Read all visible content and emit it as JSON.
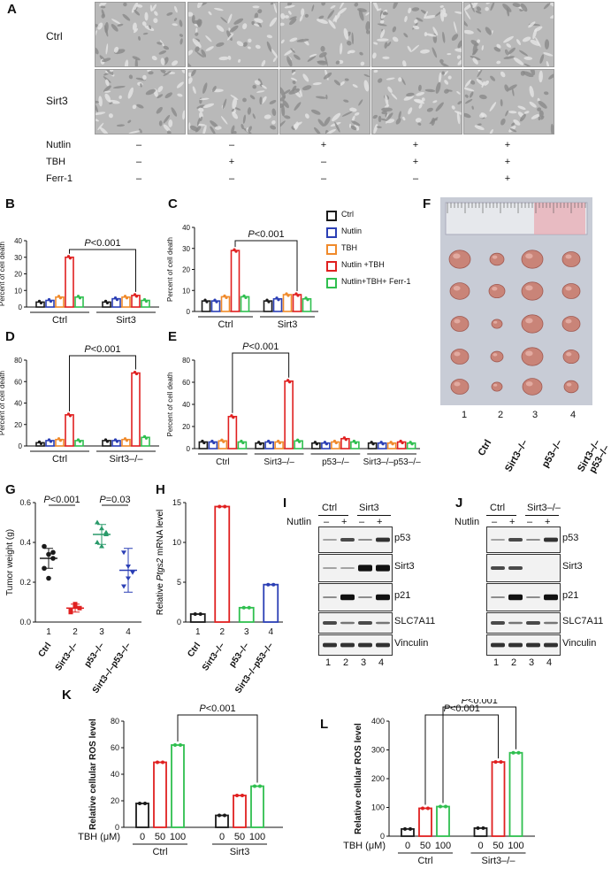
{
  "panel_letters": [
    "A",
    "B",
    "C",
    "D",
    "E",
    "F",
    "G",
    "H",
    "I",
    "J",
    "K",
    "L"
  ],
  "panelA": {
    "row_labels": [
      "Ctrl",
      "Sirt3"
    ],
    "conditions": [
      {
        "name": "Nutlin",
        "values": [
          "–",
          "–",
          "+",
          "+",
          "+"
        ]
      },
      {
        "name": "TBH",
        "values": [
          "–",
          "+",
          "–",
          "+",
          "+"
        ]
      },
      {
        "name": "Ferr-1",
        "values": [
          "–",
          "–",
          "–",
          "–",
          "+"
        ]
      }
    ]
  },
  "legend": {
    "items": [
      {
        "label": "Ctrl",
        "color": "#1a1a1a"
      },
      {
        "label": "Nutlin",
        "color": "#2b3fb5"
      },
      {
        "label": "TBH",
        "color": "#f08a2b"
      },
      {
        "label": "Nutlin +TBH",
        "color": "#e02020"
      },
      {
        "label": "Nutlin+TBH+ Ferr-1",
        "color": "#2fbf4f"
      }
    ]
  },
  "panelF": {
    "numbers": [
      "1",
      "2",
      "3",
      "4"
    ],
    "labels": [
      "Ctrl",
      "Sirt3–/–",
      "p53–/–",
      "Sirt3–/–p53–/–"
    ]
  },
  "panelI": {
    "header": [
      "Ctrl",
      "Sirt3"
    ],
    "nutlin_label": "Nutlin",
    "nutlin_signs": [
      "–",
      "+",
      "–",
      "+"
    ],
    "lanes": [
      "1",
      "2",
      "3",
      "4"
    ],
    "bands": [
      "p53",
      "Sirt3",
      "p21",
      "SLC7A11",
      "Vinculin"
    ]
  },
  "panelJ": {
    "header": [
      "Ctrl",
      "Sirt3–/–"
    ],
    "nutlin_label": "Nutlin",
    "nutlin_signs": [
      "–",
      "+",
      "–",
      "+"
    ],
    "lanes": [
      "1",
      "2",
      "3",
      "4"
    ],
    "bands": [
      "p53",
      "Sirt3",
      "p21",
      "SLC7A11",
      "Vinculin"
    ]
  },
  "chart_data": [
    {
      "id": "B",
      "type": "bar",
      "ylabel": "Percent of cell death",
      "ylim": [
        0,
        40
      ],
      "yticks": [
        0,
        10,
        20,
        30,
        40
      ],
      "groups": [
        "Ctrl",
        "Sirt3"
      ],
      "series": [
        {
          "name": "Ctrl",
          "values": [
            3,
            3
          ]
        },
        {
          "name": "Nutlin",
          "values": [
            4,
            5
          ]
        },
        {
          "name": "TBH",
          "values": [
            6,
            6
          ]
        },
        {
          "name": "Nutlin +TBH",
          "values": [
            30,
            7
          ]
        },
        {
          "name": "Nutlin+TBH+ Ferr-1",
          "values": [
            6,
            4
          ]
        }
      ],
      "annotation": "P<0.001"
    },
    {
      "id": "C",
      "type": "bar",
      "ylabel": "Percent of cell death",
      "ylim": [
        0,
        40
      ],
      "yticks": [
        0,
        10,
        20,
        30,
        40
      ],
      "groups": [
        "Ctrl",
        "Sirt3"
      ],
      "series": [
        {
          "name": "Ctrl",
          "values": [
            5,
            5
          ]
        },
        {
          "name": "Nutlin",
          "values": [
            5,
            6
          ]
        },
        {
          "name": "TBH",
          "values": [
            7,
            8
          ]
        },
        {
          "name": "Nutlin +TBH",
          "values": [
            29,
            8
          ]
        },
        {
          "name": "Nutlin+TBH+ Ferr-1",
          "values": [
            7,
            6
          ]
        }
      ],
      "annotation": "P<0.001"
    },
    {
      "id": "D",
      "type": "bar",
      "ylabel": "Percent of cell death",
      "ylim": [
        0,
        80
      ],
      "yticks": [
        0,
        20,
        40,
        60,
        80
      ],
      "groups": [
        "Ctrl",
        "Sirt3–/–"
      ],
      "series": [
        {
          "name": "Ctrl",
          "values": [
            3,
            5
          ]
        },
        {
          "name": "Nutlin",
          "values": [
            5,
            5
          ]
        },
        {
          "name": "TBH",
          "values": [
            6,
            6
          ]
        },
        {
          "name": "Nutlin +TBH",
          "values": [
            29,
            68
          ]
        },
        {
          "name": "Nutlin+TBH+ Ferr-1",
          "values": [
            5,
            8
          ]
        }
      ],
      "annotation": "P<0.001"
    },
    {
      "id": "E",
      "type": "bar",
      "ylabel": "Percent of cell death",
      "ylim": [
        0,
        80
      ],
      "yticks": [
        0,
        20,
        40,
        60,
        80
      ],
      "groups": [
        "Ctrl",
        "Sirt3–/–",
        "p53–/–",
        "Sirt3–/–p53–/–"
      ],
      "series": [
        {
          "name": "Ctrl",
          "values": [
            6,
            5,
            5,
            5
          ]
        },
        {
          "name": "Nutlin",
          "values": [
            6,
            6,
            5,
            5
          ]
        },
        {
          "name": "TBH",
          "values": [
            7,
            6,
            6,
            5
          ]
        },
        {
          "name": "Nutlin +TBH",
          "values": [
            29,
            61,
            9,
            6
          ]
        },
        {
          "name": "Nutlin+TBH+ Ferr-1",
          "values": [
            6,
            7,
            6,
            5
          ]
        }
      ],
      "annotation": "P<0.001"
    },
    {
      "id": "G",
      "type": "scatter",
      "ylabel": "Tumor weight (g)",
      "ylim": [
        0,
        0.6
      ],
      "yticks": [
        0.0,
        0.2,
        0.4,
        0.6
      ],
      "categories": [
        "1",
        "2",
        "3",
        "4"
      ],
      "category_labels": [
        "Ctrl",
        "Sirt3–/–",
        "p53–/–",
        "Sirt3–/–p53–/–"
      ],
      "means": [
        0.32,
        0.07,
        0.44,
        0.26
      ],
      "sd": [
        0.05,
        0.02,
        0.05,
        0.11
      ],
      "points": [
        [
          0.38,
          0.34,
          0.32,
          0.27,
          0.22,
          0.35
        ],
        [
          0.05,
          0.08,
          0.07,
          0.06,
          0.09
        ],
        [
          0.5,
          0.47,
          0.44,
          0.4,
          0.38,
          0.45
        ],
        [
          0.35,
          0.28,
          0.25,
          0.18,
          0.22
        ]
      ],
      "colors": [
        "#1a1a1a",
        "#e02020",
        "#2a9a6a",
        "#2b3fb5"
      ],
      "annotations": [
        "P<0.001",
        "P=0.03"
      ]
    },
    {
      "id": "H",
      "type": "bar",
      "ylabel": "Relative Ptgs2 mRNA level",
      "ylim": [
        0,
        15
      ],
      "yticks": [
        0,
        5,
        10,
        15
      ],
      "categories": [
        "1",
        "2",
        "3",
        "4"
      ],
      "category_labels": [
        "Ctrl",
        "Sirt3–/–",
        "p53–/–",
        "Sirt3–/–p53–/–"
      ],
      "values": [
        1,
        14.5,
        1.8,
        4.7
      ],
      "colors": [
        "#1a1a1a",
        "#e02020",
        "#2fbf4f",
        "#2b3fb5"
      ]
    },
    {
      "id": "K",
      "type": "bar",
      "ylabel": "Relative cellular ROS level",
      "ylim": [
        0,
        80
      ],
      "yticks": [
        0,
        20,
        40,
        60,
        80
      ],
      "xlabel": "TBH (μM)",
      "groups": [
        "Ctrl",
        "Sirt3"
      ],
      "dose_labels": [
        "0",
        "50",
        "100"
      ],
      "series": [
        {
          "name": "0",
          "values": [
            18,
            9
          ]
        },
        {
          "name": "50",
          "values": [
            49,
            24
          ]
        },
        {
          "name": "100",
          "values": [
            62,
            31
          ]
        }
      ],
      "annotation": "P<0.001"
    },
    {
      "id": "L",
      "type": "bar",
      "ylabel": "Relative cellular ROS level",
      "ylim": [
        0,
        400
      ],
      "yticks": [
        0,
        100,
        200,
        300,
        400
      ],
      "xlabel": "TBH (μM)",
      "groups": [
        "Ctrl",
        "Sirt3–/–"
      ],
      "dose_labels": [
        "0",
        "50",
        "100"
      ],
      "series": [
        {
          "name": "0",
          "values": [
            25,
            28
          ]
        },
        {
          "name": "50",
          "values": [
            97,
            258
          ]
        },
        {
          "name": "100",
          "values": [
            103,
            290
          ]
        }
      ],
      "annotations": [
        "P<0.001",
        "P<0.001"
      ]
    }
  ]
}
